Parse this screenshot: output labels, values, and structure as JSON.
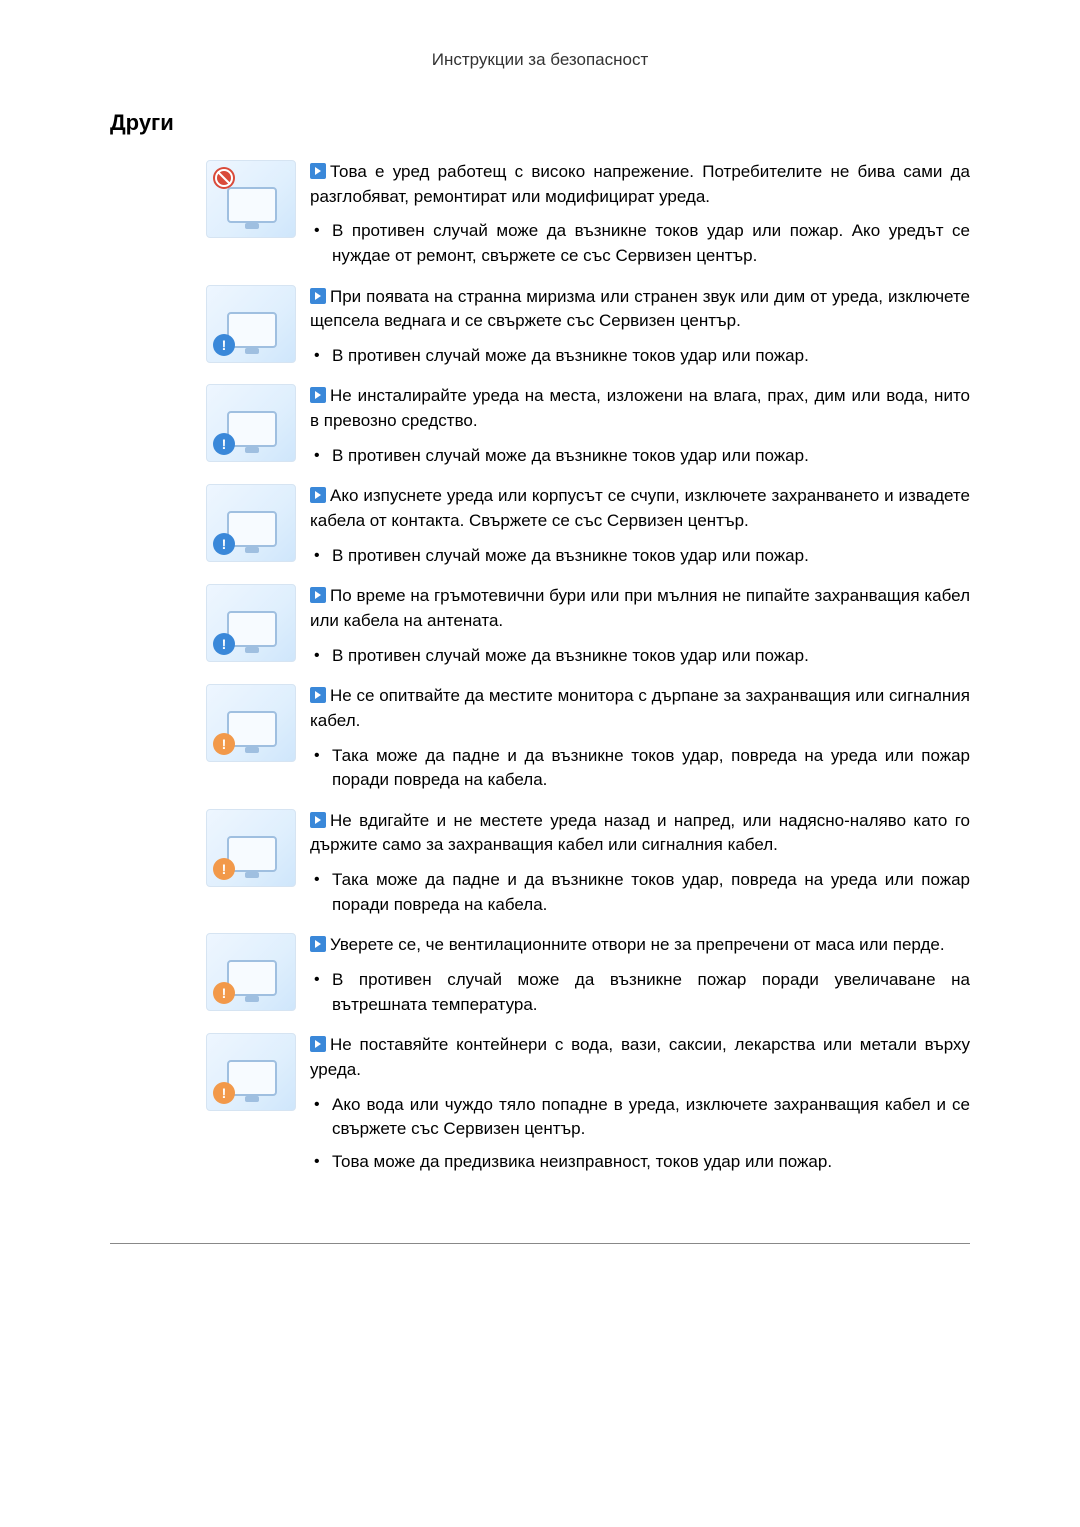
{
  "header": {
    "title": "Инструкции за безопасност"
  },
  "section": {
    "title": "Други"
  },
  "colors": {
    "arrow_icon_bg": "#3a88d9",
    "badge_red": "#d94a3a",
    "badge_blue": "#3a88d9",
    "badge_orange": "#f2994a",
    "page_bg": "#ffffff",
    "text": "#000000",
    "rule": "#888888"
  },
  "items": [
    {
      "badge": "red",
      "lead": "Това е уред работещ с високо напрежение. Потребителите не бива сами да разглобяват, ремонтират или модифицират уреда.",
      "subs": [
        "В противен случай може да възникне токов удар или пожар. Ако уредът се нуждае от ремонт, свържете се със Сервизен център."
      ]
    },
    {
      "badge": "blue",
      "lead": "При появата на странна миризма или странен звук или дим от уреда, изключете щепсела веднага и се свържете със Сервизен център.",
      "subs": [
        "В противен случай може да възникне токов удар или пожар."
      ]
    },
    {
      "badge": "blue",
      "lead": "Не инсталирайте уреда на места, изложени на влага, прах, дим или вода, нито в превозно средство.",
      "subs": [
        "В противен случай може да възникне токов удар или пожар."
      ]
    },
    {
      "badge": "blue",
      "lead": "Ако изпуснете уреда или корпусът се счупи, изключете захранването и извадете кабела от контакта. Свържете се със Сервизен център.",
      "subs": [
        "В противен случай може да възникне токов удар или пожар."
      ]
    },
    {
      "badge": "blue",
      "lead": "По време на гръмотевични бури или при мълния не пипайте захранващия кабел или кабела на антената.",
      "subs": [
        "В противен случай може да възникне токов удар или пожар."
      ]
    },
    {
      "badge": "orange",
      "lead": "Не се опитвайте да местите монитора с дърпане за захранващия или сигналния кабел.",
      "subs": [
        "Така може да падне и да възникне токов удар, повреда на уреда или пожар поради повреда на кабела."
      ]
    },
    {
      "badge": "orange",
      "lead": "Не вдигайте и не местете уреда назад и напред, или надясно-наляво като го държите само за захранващия кабел или сигналния кабел.",
      "subs": [
        "Така може да падне и да възникне токов удар, повреда на уреда или пожар поради повреда на кабела."
      ]
    },
    {
      "badge": "orange",
      "lead": "Уверете се, че вентилационните отвори не за препречени от маса или перде.",
      "subs": [
        "В противен случай може да възникне пожар поради увеличаване на вътрешната температура."
      ]
    },
    {
      "badge": "orange",
      "lead": "Не поставяйте контейнери с вода, вази, саксии, лекарства или метали върху уреда.",
      "subs": [
        "Ако вода или чуждо тяло попадне в уреда, изключете захранващия кабел и се свържете със Сервизен център.",
        "Това може да предизвика неизправност, токов удар или пожар."
      ]
    }
  ]
}
